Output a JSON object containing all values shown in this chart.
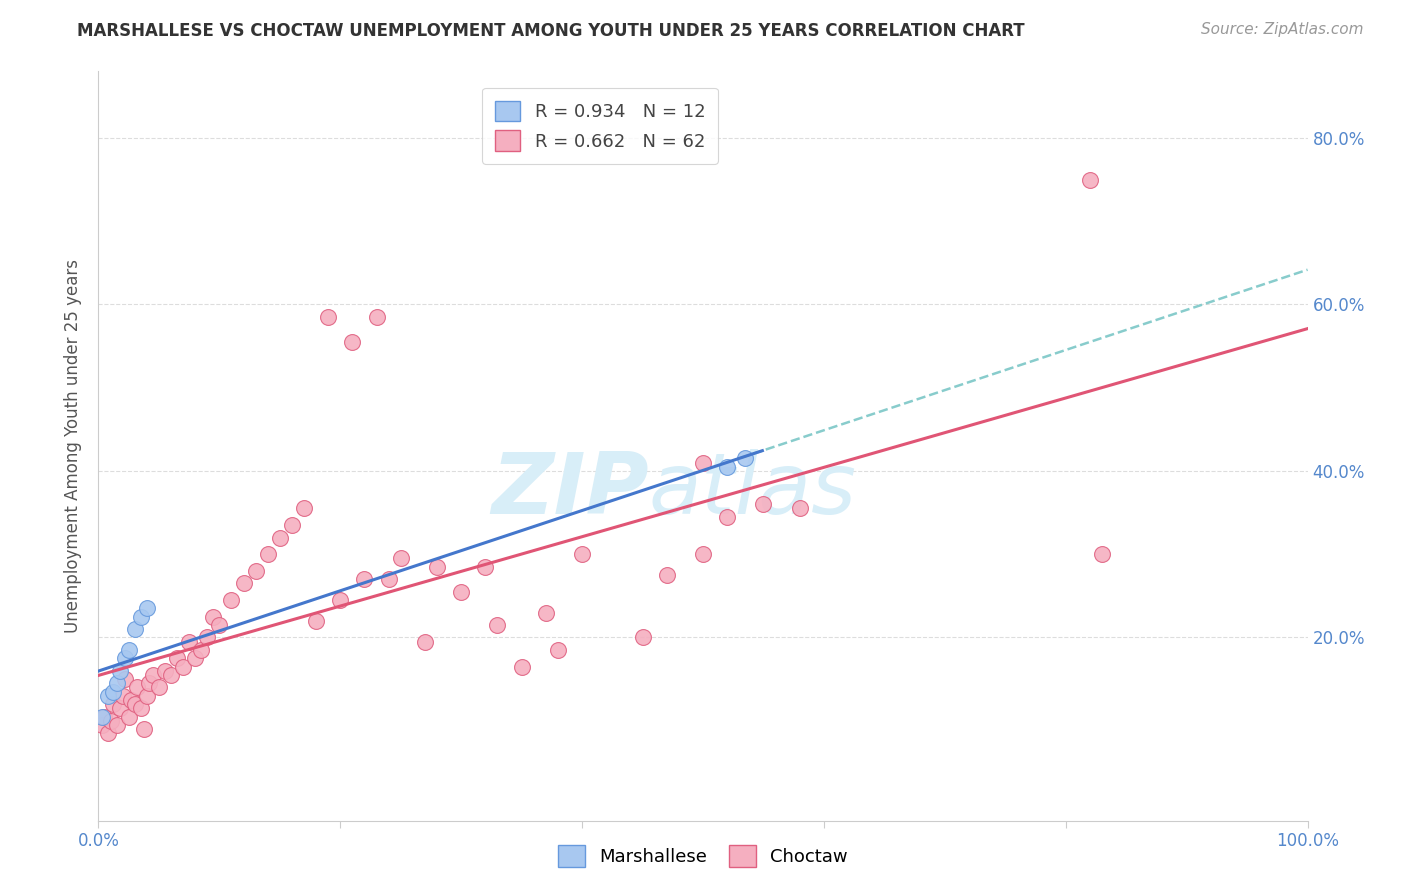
{
  "title": "MARSHALLESE VS CHOCTAW UNEMPLOYMENT AMONG YOUTH UNDER 25 YEARS CORRELATION CHART",
  "source": "Source: ZipAtlas.com",
  "ylabel": "Unemployment Among Youth under 25 years",
  "xlim": [
    0.0,
    1.0
  ],
  "ylim": [
    -0.02,
    0.88
  ],
  "x_ticks": [
    0.0,
    0.2,
    0.4,
    0.6,
    0.8,
    1.0
  ],
  "x_tick_labels": [
    "0.0%",
    "",
    "",
    "",
    "",
    "100.0%"
  ],
  "y_ticks": [
    0.2,
    0.4,
    0.6,
    0.8
  ],
  "y_tick_labels": [
    "20.0%",
    "40.0%",
    "60.0%",
    "80.0%"
  ],
  "marshallese_color": "#a8c8f0",
  "choctaw_color": "#f5afc0",
  "marshallese_edge_color": "#6699dd",
  "choctaw_edge_color": "#e06080",
  "marshallese_line_color": "#4477cc",
  "choctaw_line_color": "#e05575",
  "dashed_line_color": "#88cccc",
  "marshallese_R": 0.934,
  "marshallese_N": 12,
  "choctaw_R": 0.662,
  "choctaw_N": 62,
  "grid_color": "#dddddd",
  "title_fontsize": 12,
  "source_fontsize": 11,
  "tick_fontsize": 12,
  "legend_fontsize": 13,
  "ylabel_fontsize": 12,
  "watermark_color": "#d8eef8",
  "marshallese_x": [
    0.003,
    0.008,
    0.012,
    0.015,
    0.018,
    0.022,
    0.025,
    0.03,
    0.035,
    0.04,
    0.52,
    0.535
  ],
  "marshallese_y": [
    0.105,
    0.13,
    0.135,
    0.145,
    0.16,
    0.175,
    0.185,
    0.21,
    0.225,
    0.235,
    0.405,
    0.415
  ],
  "choctaw_x": [
    0.003,
    0.005,
    0.008,
    0.01,
    0.012,
    0.015,
    0.018,
    0.02,
    0.022,
    0.025,
    0.027,
    0.03,
    0.032,
    0.035,
    0.038,
    0.04,
    0.042,
    0.045,
    0.05,
    0.055,
    0.06,
    0.065,
    0.07,
    0.075,
    0.08,
    0.085,
    0.09,
    0.095,
    0.1,
    0.11,
    0.12,
    0.13,
    0.14,
    0.15,
    0.16,
    0.17,
    0.18,
    0.19,
    0.2,
    0.21,
    0.22,
    0.23,
    0.24,
    0.25,
    0.27,
    0.28,
    0.3,
    0.32,
    0.33,
    0.35,
    0.37,
    0.38,
    0.4,
    0.45,
    0.47,
    0.5,
    0.52,
    0.55,
    0.58,
    0.82,
    0.83,
    0.5
  ],
  "choctaw_y": [
    0.095,
    0.105,
    0.085,
    0.1,
    0.12,
    0.095,
    0.115,
    0.13,
    0.15,
    0.105,
    0.125,
    0.12,
    0.14,
    0.115,
    0.09,
    0.13,
    0.145,
    0.155,
    0.14,
    0.16,
    0.155,
    0.175,
    0.165,
    0.195,
    0.175,
    0.185,
    0.2,
    0.225,
    0.215,
    0.245,
    0.265,
    0.28,
    0.3,
    0.32,
    0.335,
    0.355,
    0.22,
    0.585,
    0.245,
    0.555,
    0.27,
    0.585,
    0.27,
    0.295,
    0.195,
    0.285,
    0.255,
    0.285,
    0.215,
    0.165,
    0.23,
    0.185,
    0.3,
    0.2,
    0.275,
    0.3,
    0.345,
    0.36,
    0.355,
    0.75,
    0.3,
    0.41
  ]
}
